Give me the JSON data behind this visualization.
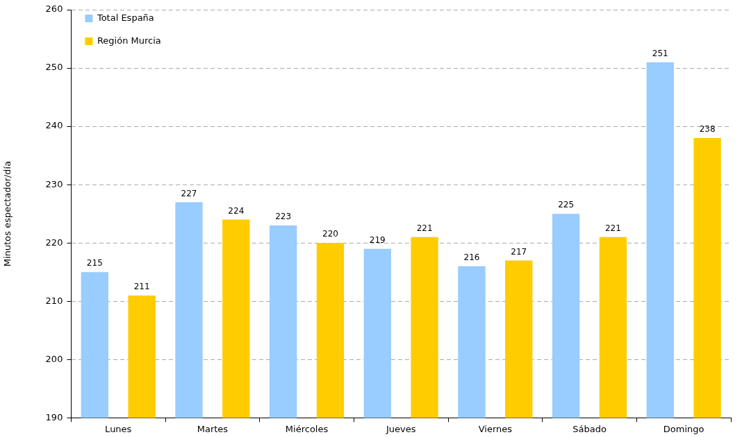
{
  "chart_data": {
    "type": "bar",
    "ylabel": "Minutos espectador/día",
    "categories": [
      "Lunes",
      "Martes",
      "Miércoles",
      "Jueves",
      "Viernes",
      "Sábado",
      "Domingo"
    ],
    "series": [
      {
        "name": "Total España",
        "color": "#99ccff",
        "values": [
          215,
          227,
          223,
          219,
          216,
          225,
          251
        ]
      },
      {
        "name": "Región Murcia",
        "color": "#ffcc00",
        "values": [
          211,
          224,
          220,
          221,
          217,
          221,
          238
        ]
      }
    ],
    "ylim": [
      190,
      260
    ],
    "yticks": [
      190,
      200,
      210,
      220,
      230,
      240,
      250,
      260
    ],
    "grid": "y",
    "legend": "top left",
    "data_labels": true
  }
}
